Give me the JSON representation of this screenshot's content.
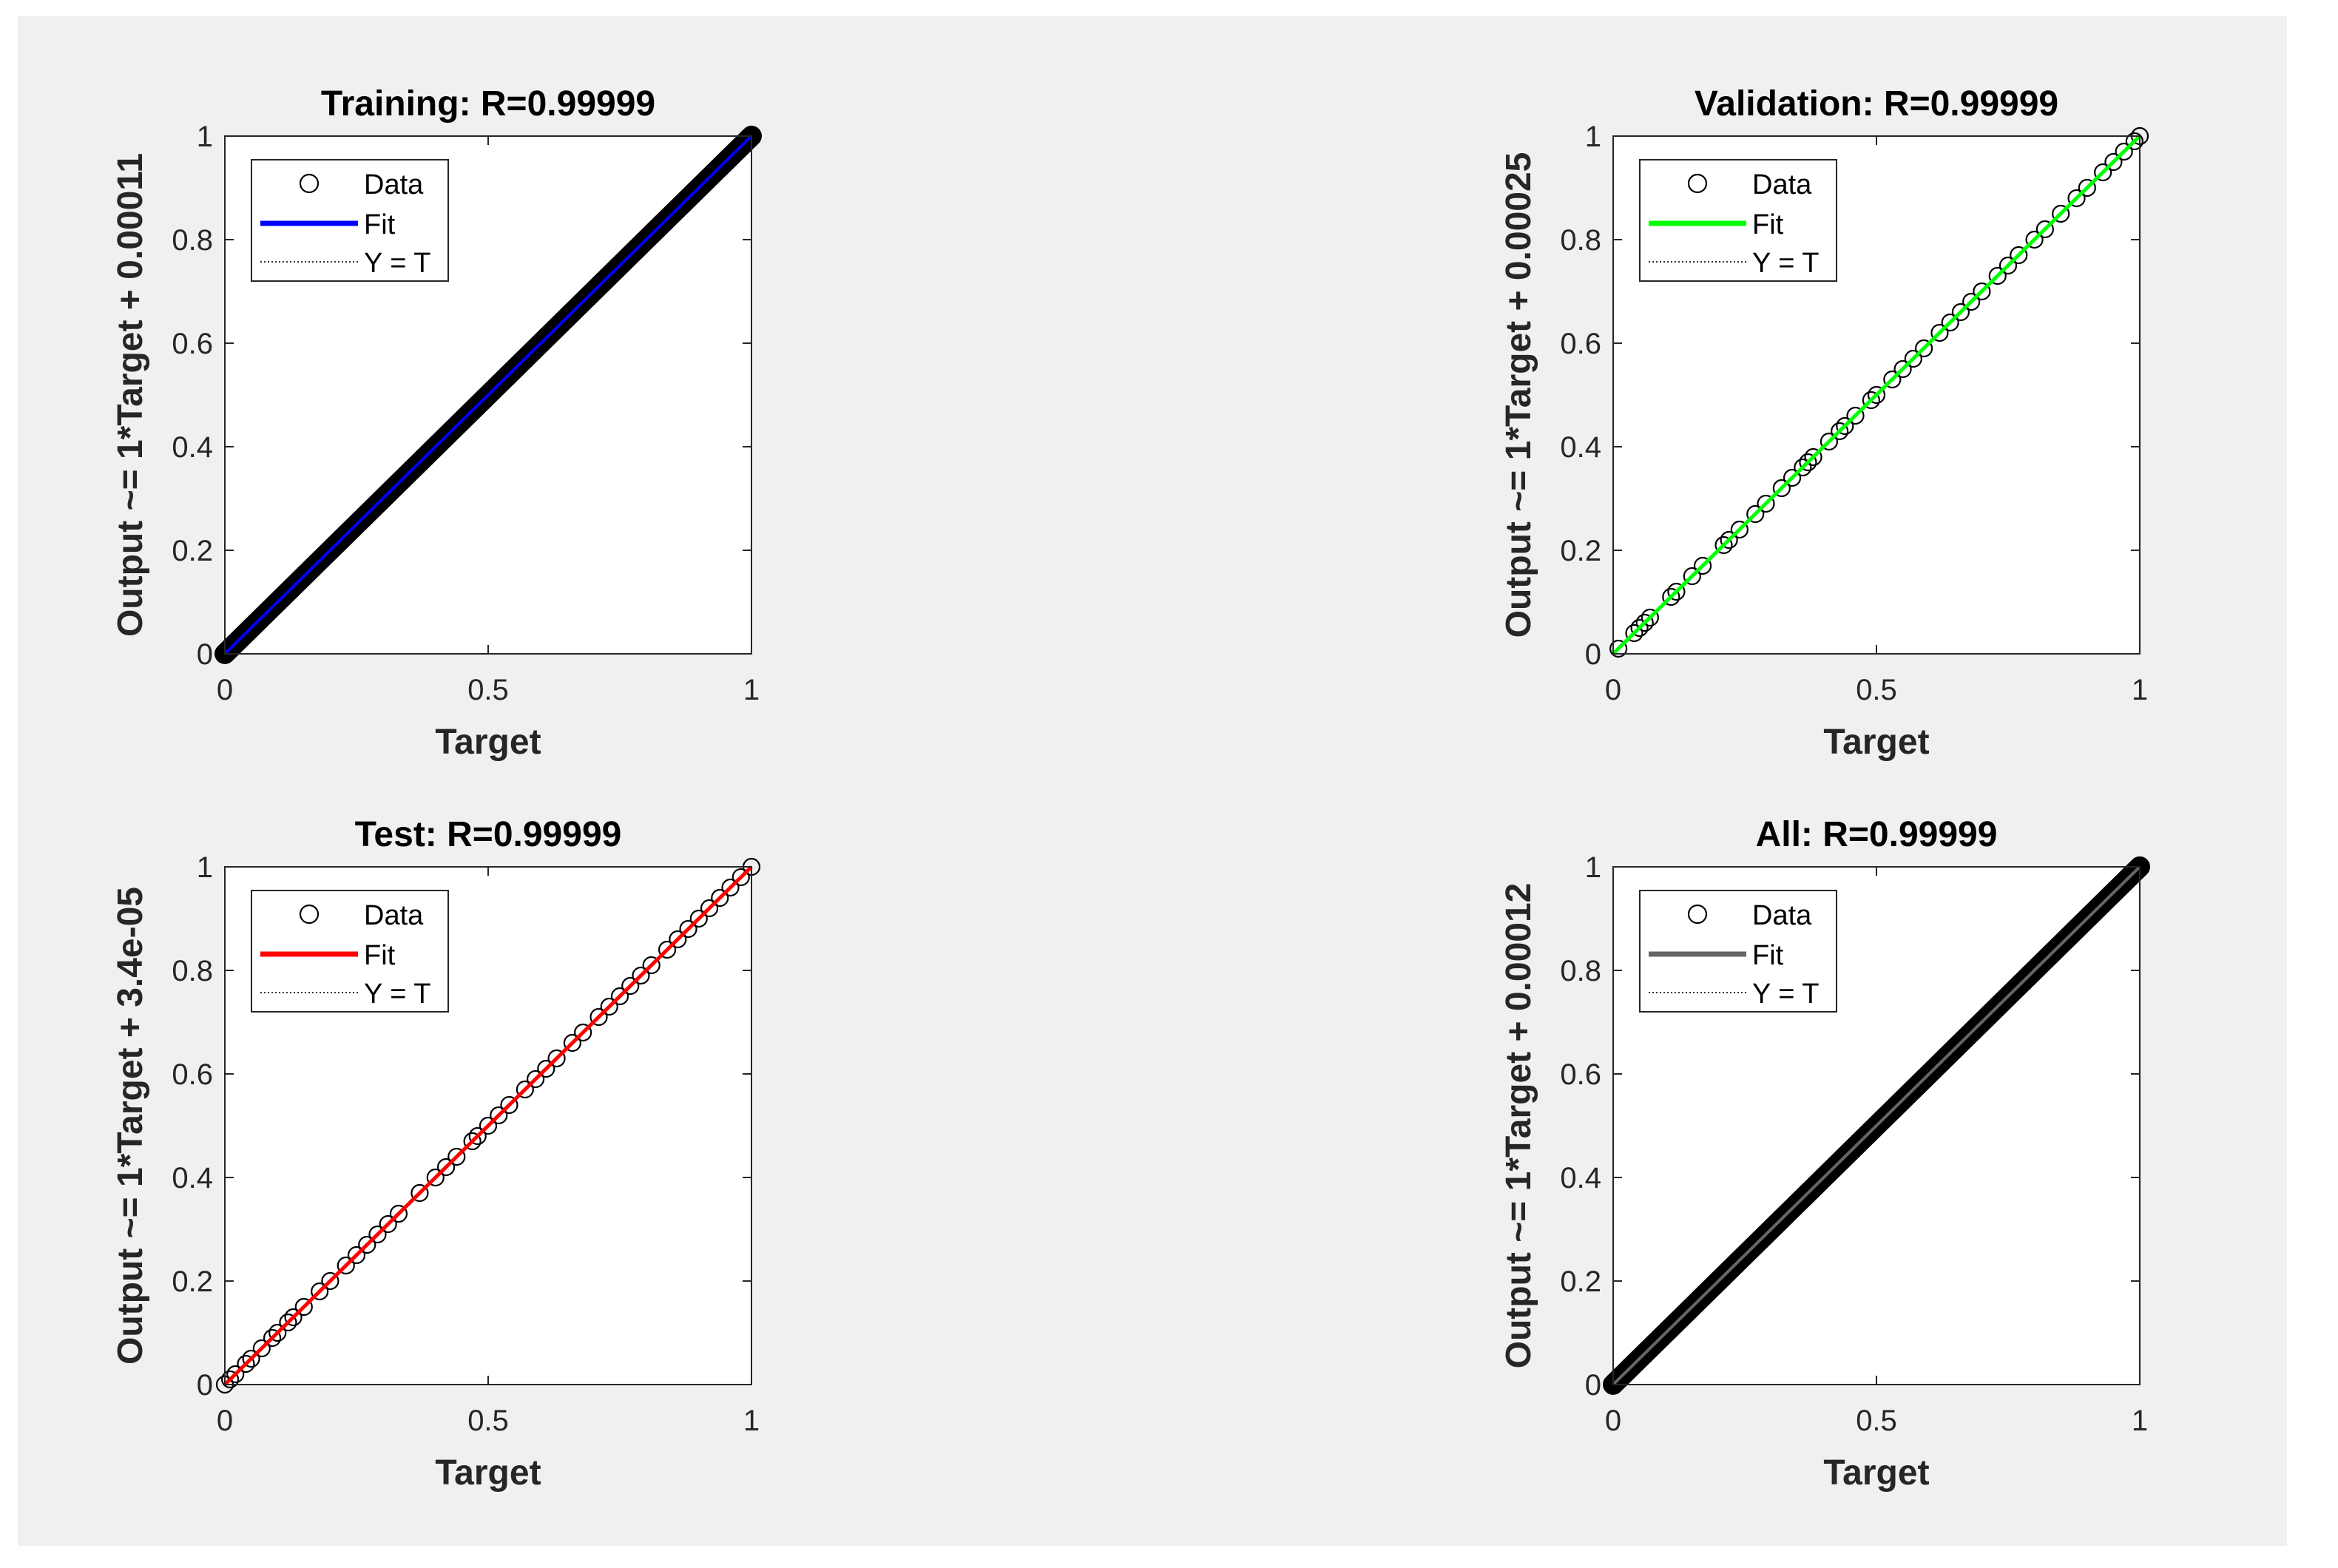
{
  "chart_data": [
    {
      "type": "scatter",
      "title": "Training: R=0.99999",
      "xlabel": "Target",
      "ylabel": "Output ~= 1*Target + 0.00011",
      "xlim": [
        0,
        1
      ],
      "ylim": [
        0,
        1
      ],
      "xticks": [
        "0",
        "0.5",
        "1"
      ],
      "yticks": [
        "0",
        "0.2",
        "0.4",
        "0.6",
        "0.8",
        "1"
      ],
      "grid": false,
      "legend_position": "top-left",
      "legend": [
        "Data",
        "Fit",
        "Y = T"
      ],
      "fit_color": "#0000ff",
      "fit": {
        "slope": 1,
        "intercept": 0.00011
      },
      "density": "dense",
      "x": [
        0,
        0.02,
        0.05,
        0.08,
        0.12,
        0.18,
        0.25,
        0.32,
        0.4,
        0.48,
        0.55,
        0.63,
        0.7,
        0.78,
        0.85,
        0.92,
        0.97,
        1
      ],
      "y": [
        0,
        0.02,
        0.05,
        0.08,
        0.12,
        0.18,
        0.25,
        0.32,
        0.4,
        0.48,
        0.55,
        0.63,
        0.7,
        0.78,
        0.85,
        0.92,
        0.97,
        1
      ]
    },
    {
      "type": "scatter",
      "title": "Validation: R=0.99999",
      "xlabel": "Target",
      "ylabel": "Output ~= 1*Target + 0.00025",
      "xlim": [
        0,
        1
      ],
      "ylim": [
        0,
        1
      ],
      "xticks": [
        "0",
        "0.5",
        "1"
      ],
      "yticks": [
        "0",
        "0.2",
        "0.4",
        "0.6",
        "0.8",
        "1"
      ],
      "grid": false,
      "legend_position": "top-left",
      "legend": [
        "Data",
        "Fit",
        "Y = T"
      ],
      "fit_color": "#00ff00",
      "fit": {
        "slope": 1,
        "intercept": 0.00025
      },
      "density": "sparse",
      "x": [
        0.01,
        0.04,
        0.05,
        0.06,
        0.07,
        0.11,
        0.12,
        0.15,
        0.17,
        0.21,
        0.22,
        0.24,
        0.27,
        0.29,
        0.32,
        0.34,
        0.36,
        0.37,
        0.38,
        0.41,
        0.43,
        0.44,
        0.46,
        0.49,
        0.5,
        0.53,
        0.55,
        0.57,
        0.59,
        0.62,
        0.64,
        0.66,
        0.68,
        0.7,
        0.73,
        0.75,
        0.77,
        0.8,
        0.82,
        0.85,
        0.88,
        0.9,
        0.93,
        0.95,
        0.97,
        0.99,
        1
      ],
      "y": [
        0.01,
        0.04,
        0.05,
        0.06,
        0.07,
        0.11,
        0.12,
        0.15,
        0.17,
        0.21,
        0.22,
        0.24,
        0.27,
        0.29,
        0.32,
        0.34,
        0.36,
        0.37,
        0.38,
        0.41,
        0.43,
        0.44,
        0.46,
        0.49,
        0.5,
        0.53,
        0.55,
        0.57,
        0.59,
        0.62,
        0.64,
        0.66,
        0.68,
        0.7,
        0.73,
        0.75,
        0.77,
        0.8,
        0.82,
        0.85,
        0.88,
        0.9,
        0.93,
        0.95,
        0.97,
        0.99,
        1
      ]
    },
    {
      "type": "scatter",
      "title": "Test: R=0.99999",
      "xlabel": "Target",
      "ylabel": "Output ~= 1*Target + 3.4e-05",
      "xlim": [
        0,
        1
      ],
      "ylim": [
        0,
        1
      ],
      "xticks": [
        "0",
        "0.5",
        "1"
      ],
      "yticks": [
        "0",
        "0.2",
        "0.4",
        "0.6",
        "0.8",
        "1"
      ],
      "grid": false,
      "legend_position": "top-left",
      "legend": [
        "Data",
        "Fit",
        "Y = T"
      ],
      "fit_color": "#ff0000",
      "fit": {
        "slope": 1,
        "intercept": 3.4e-05
      },
      "density": "sparse",
      "x": [
        0,
        0.01,
        0.02,
        0.04,
        0.05,
        0.07,
        0.09,
        0.1,
        0.12,
        0.13,
        0.15,
        0.18,
        0.2,
        0.23,
        0.25,
        0.27,
        0.29,
        0.31,
        0.33,
        0.37,
        0.4,
        0.42,
        0.44,
        0.47,
        0.48,
        0.5,
        0.52,
        0.54,
        0.57,
        0.59,
        0.61,
        0.63,
        0.66,
        0.68,
        0.71,
        0.73,
        0.75,
        0.77,
        0.79,
        0.81,
        0.84,
        0.86,
        0.88,
        0.9,
        0.92,
        0.94,
        0.96,
        0.98,
        1
      ],
      "y": [
        0,
        0.01,
        0.02,
        0.04,
        0.05,
        0.07,
        0.09,
        0.1,
        0.12,
        0.13,
        0.15,
        0.18,
        0.2,
        0.23,
        0.25,
        0.27,
        0.29,
        0.31,
        0.33,
        0.37,
        0.4,
        0.42,
        0.44,
        0.47,
        0.48,
        0.5,
        0.52,
        0.54,
        0.57,
        0.59,
        0.61,
        0.63,
        0.66,
        0.68,
        0.71,
        0.73,
        0.75,
        0.77,
        0.79,
        0.81,
        0.84,
        0.86,
        0.88,
        0.9,
        0.92,
        0.94,
        0.96,
        0.98,
        1
      ]
    },
    {
      "type": "scatter",
      "title": "All: R=0.99999",
      "xlabel": "Target",
      "ylabel": "Output ~= 1*Target + 0.00012",
      "xlim": [
        0,
        1
      ],
      "ylim": [
        0,
        1
      ],
      "xticks": [
        "0",
        "0.5",
        "1"
      ],
      "yticks": [
        "0",
        "0.2",
        "0.4",
        "0.6",
        "0.8",
        "1"
      ],
      "grid": false,
      "legend_position": "top-left",
      "legend": [
        "Data",
        "Fit",
        "Y = T"
      ],
      "fit_color": "#666666",
      "fit": {
        "slope": 1,
        "intercept": 0.00012
      },
      "density": "dense",
      "x": [
        0,
        0.02,
        0.05,
        0.08,
        0.12,
        0.18,
        0.25,
        0.32,
        0.4,
        0.48,
        0.55,
        0.63,
        0.7,
        0.78,
        0.85,
        0.92,
        0.97,
        1
      ],
      "y": [
        0,
        0.02,
        0.05,
        0.08,
        0.12,
        0.18,
        0.25,
        0.32,
        0.4,
        0.48,
        0.55,
        0.63,
        0.7,
        0.78,
        0.85,
        0.92,
        0.97,
        1
      ]
    }
  ]
}
